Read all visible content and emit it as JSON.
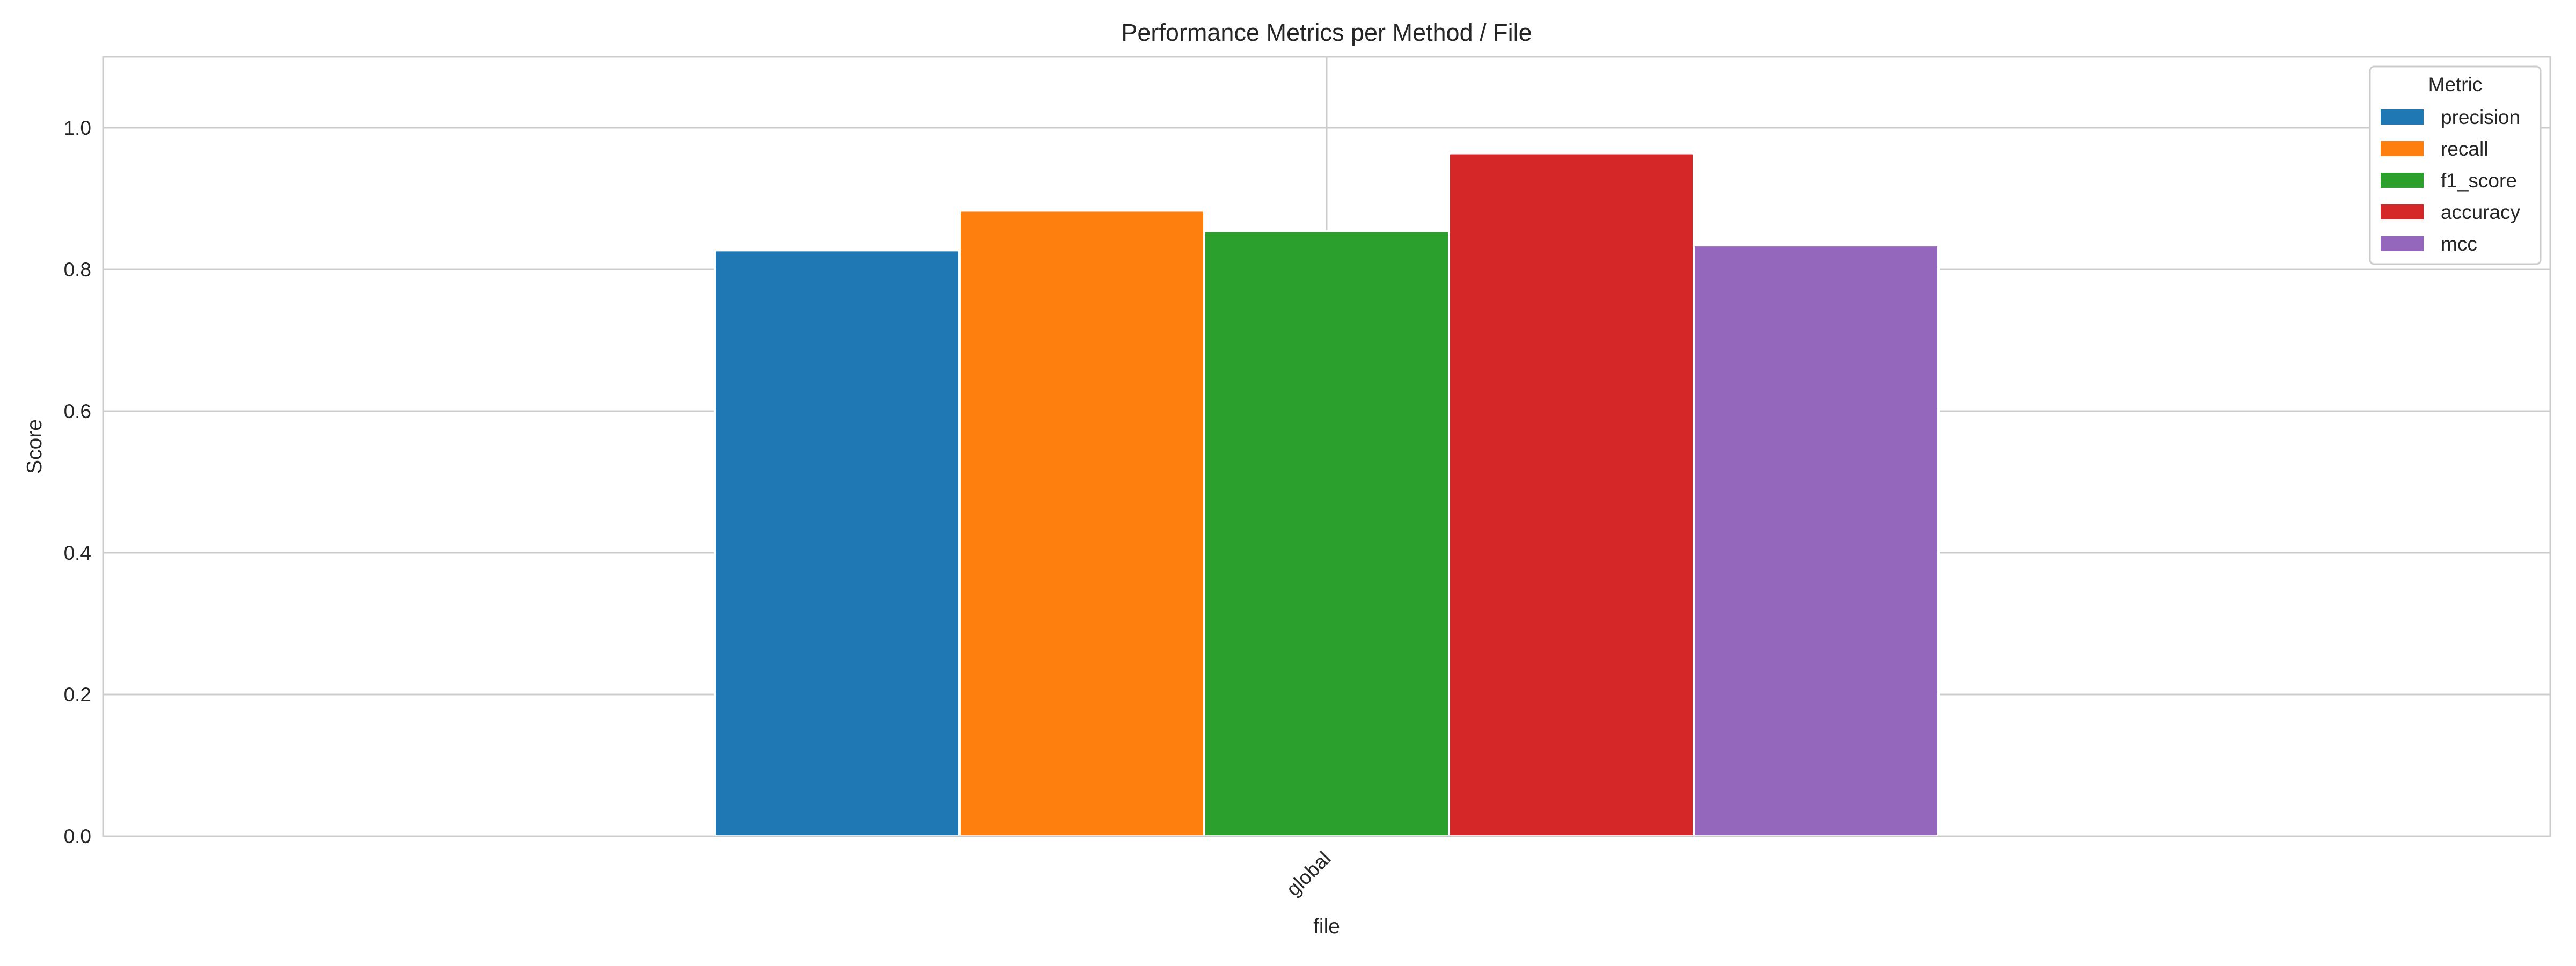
{
  "chart_data": {
    "type": "bar",
    "title": "Performance Metrics per Method / File",
    "xlabel": "file",
    "ylabel": "Score",
    "categories": [
      "global"
    ],
    "ylim": [
      0,
      1.1
    ],
    "yticks": [
      "0.0",
      "0.2",
      "0.4",
      "0.6",
      "0.8",
      "1.0"
    ],
    "grid": true,
    "legend": {
      "title": "Metric",
      "placement": "top-right"
    },
    "series": [
      {
        "name": "precision",
        "values": [
          0.827
        ],
        "color": "#1f77b4"
      },
      {
        "name": "recall",
        "values": [
          0.883
        ],
        "color": "#ff7f0e"
      },
      {
        "name": "f1_score",
        "values": [
          0.854
        ],
        "color": "#2ca02c"
      },
      {
        "name": "accuracy",
        "values": [
          0.964
        ],
        "color": "#d62728"
      },
      {
        "name": "mcc",
        "values": [
          0.834
        ],
        "color": "#9467bd"
      }
    ]
  }
}
